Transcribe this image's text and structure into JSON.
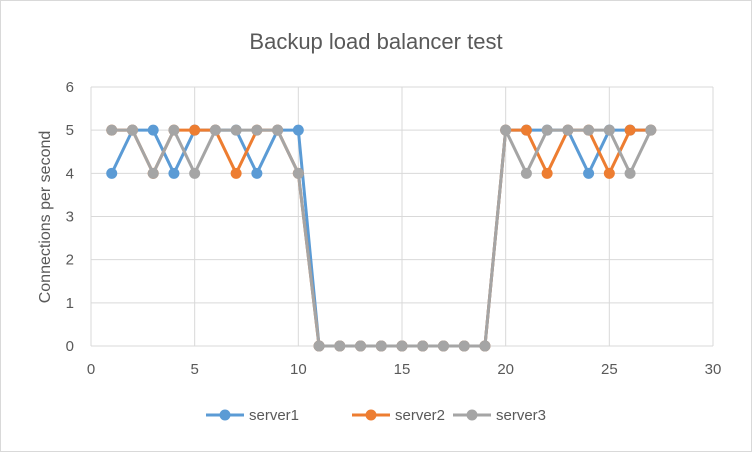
{
  "chart_data": {
    "type": "line",
    "title": "Backup load balancer test",
    "xlabel": "",
    "ylabel": "Connections per second",
    "xlim": [
      0,
      30
    ],
    "ylim": [
      0,
      6
    ],
    "x_ticks": [
      0,
      5,
      10,
      15,
      20,
      25,
      30
    ],
    "y_ticks": [
      0,
      1,
      2,
      3,
      4,
      5,
      6
    ],
    "grid": true,
    "legend_position": "bottom",
    "series": [
      {
        "name": "server1",
        "color": "#5b9bd5",
        "x": [
          1,
          2,
          3,
          4,
          5,
          6,
          7,
          8,
          9,
          10,
          11,
          12,
          13,
          14,
          15,
          16,
          17,
          18,
          19,
          20,
          21,
          22,
          23,
          24,
          25,
          26,
          27
        ],
        "values": [
          4,
          5,
          5,
          4,
          5,
          5,
          5,
          4,
          5,
          5,
          0,
          0,
          0,
          0,
          0,
          0,
          0,
          0,
          0,
          5,
          5,
          5,
          5,
          4,
          5,
          5,
          5
        ]
      },
      {
        "name": "server2",
        "color": "#ed7d31",
        "x": [
          1,
          2,
          3,
          4,
          5,
          6,
          7,
          8,
          9,
          10,
          11,
          12,
          13,
          14,
          15,
          16,
          17,
          18,
          19,
          20,
          21,
          22,
          23,
          24,
          25,
          26,
          27
        ],
        "values": [
          5,
          5,
          4,
          5,
          5,
          5,
          4,
          5,
          5,
          4,
          0,
          0,
          0,
          0,
          0,
          0,
          0,
          0,
          0,
          5,
          5,
          4,
          5,
          5,
          4,
          5,
          5
        ]
      },
      {
        "name": "server3",
        "color": "#a5a5a5",
        "x": [
          1,
          2,
          3,
          4,
          5,
          6,
          7,
          8,
          9,
          10,
          11,
          12,
          13,
          14,
          15,
          16,
          17,
          18,
          19,
          20,
          21,
          22,
          23,
          24,
          25,
          26,
          27
        ],
        "values": [
          5,
          5,
          4,
          5,
          4,
          5,
          5,
          5,
          5,
          4,
          0,
          0,
          0,
          0,
          0,
          0,
          0,
          0,
          0,
          5,
          4,
          5,
          5,
          5,
          5,
          4,
          5
        ]
      }
    ]
  }
}
